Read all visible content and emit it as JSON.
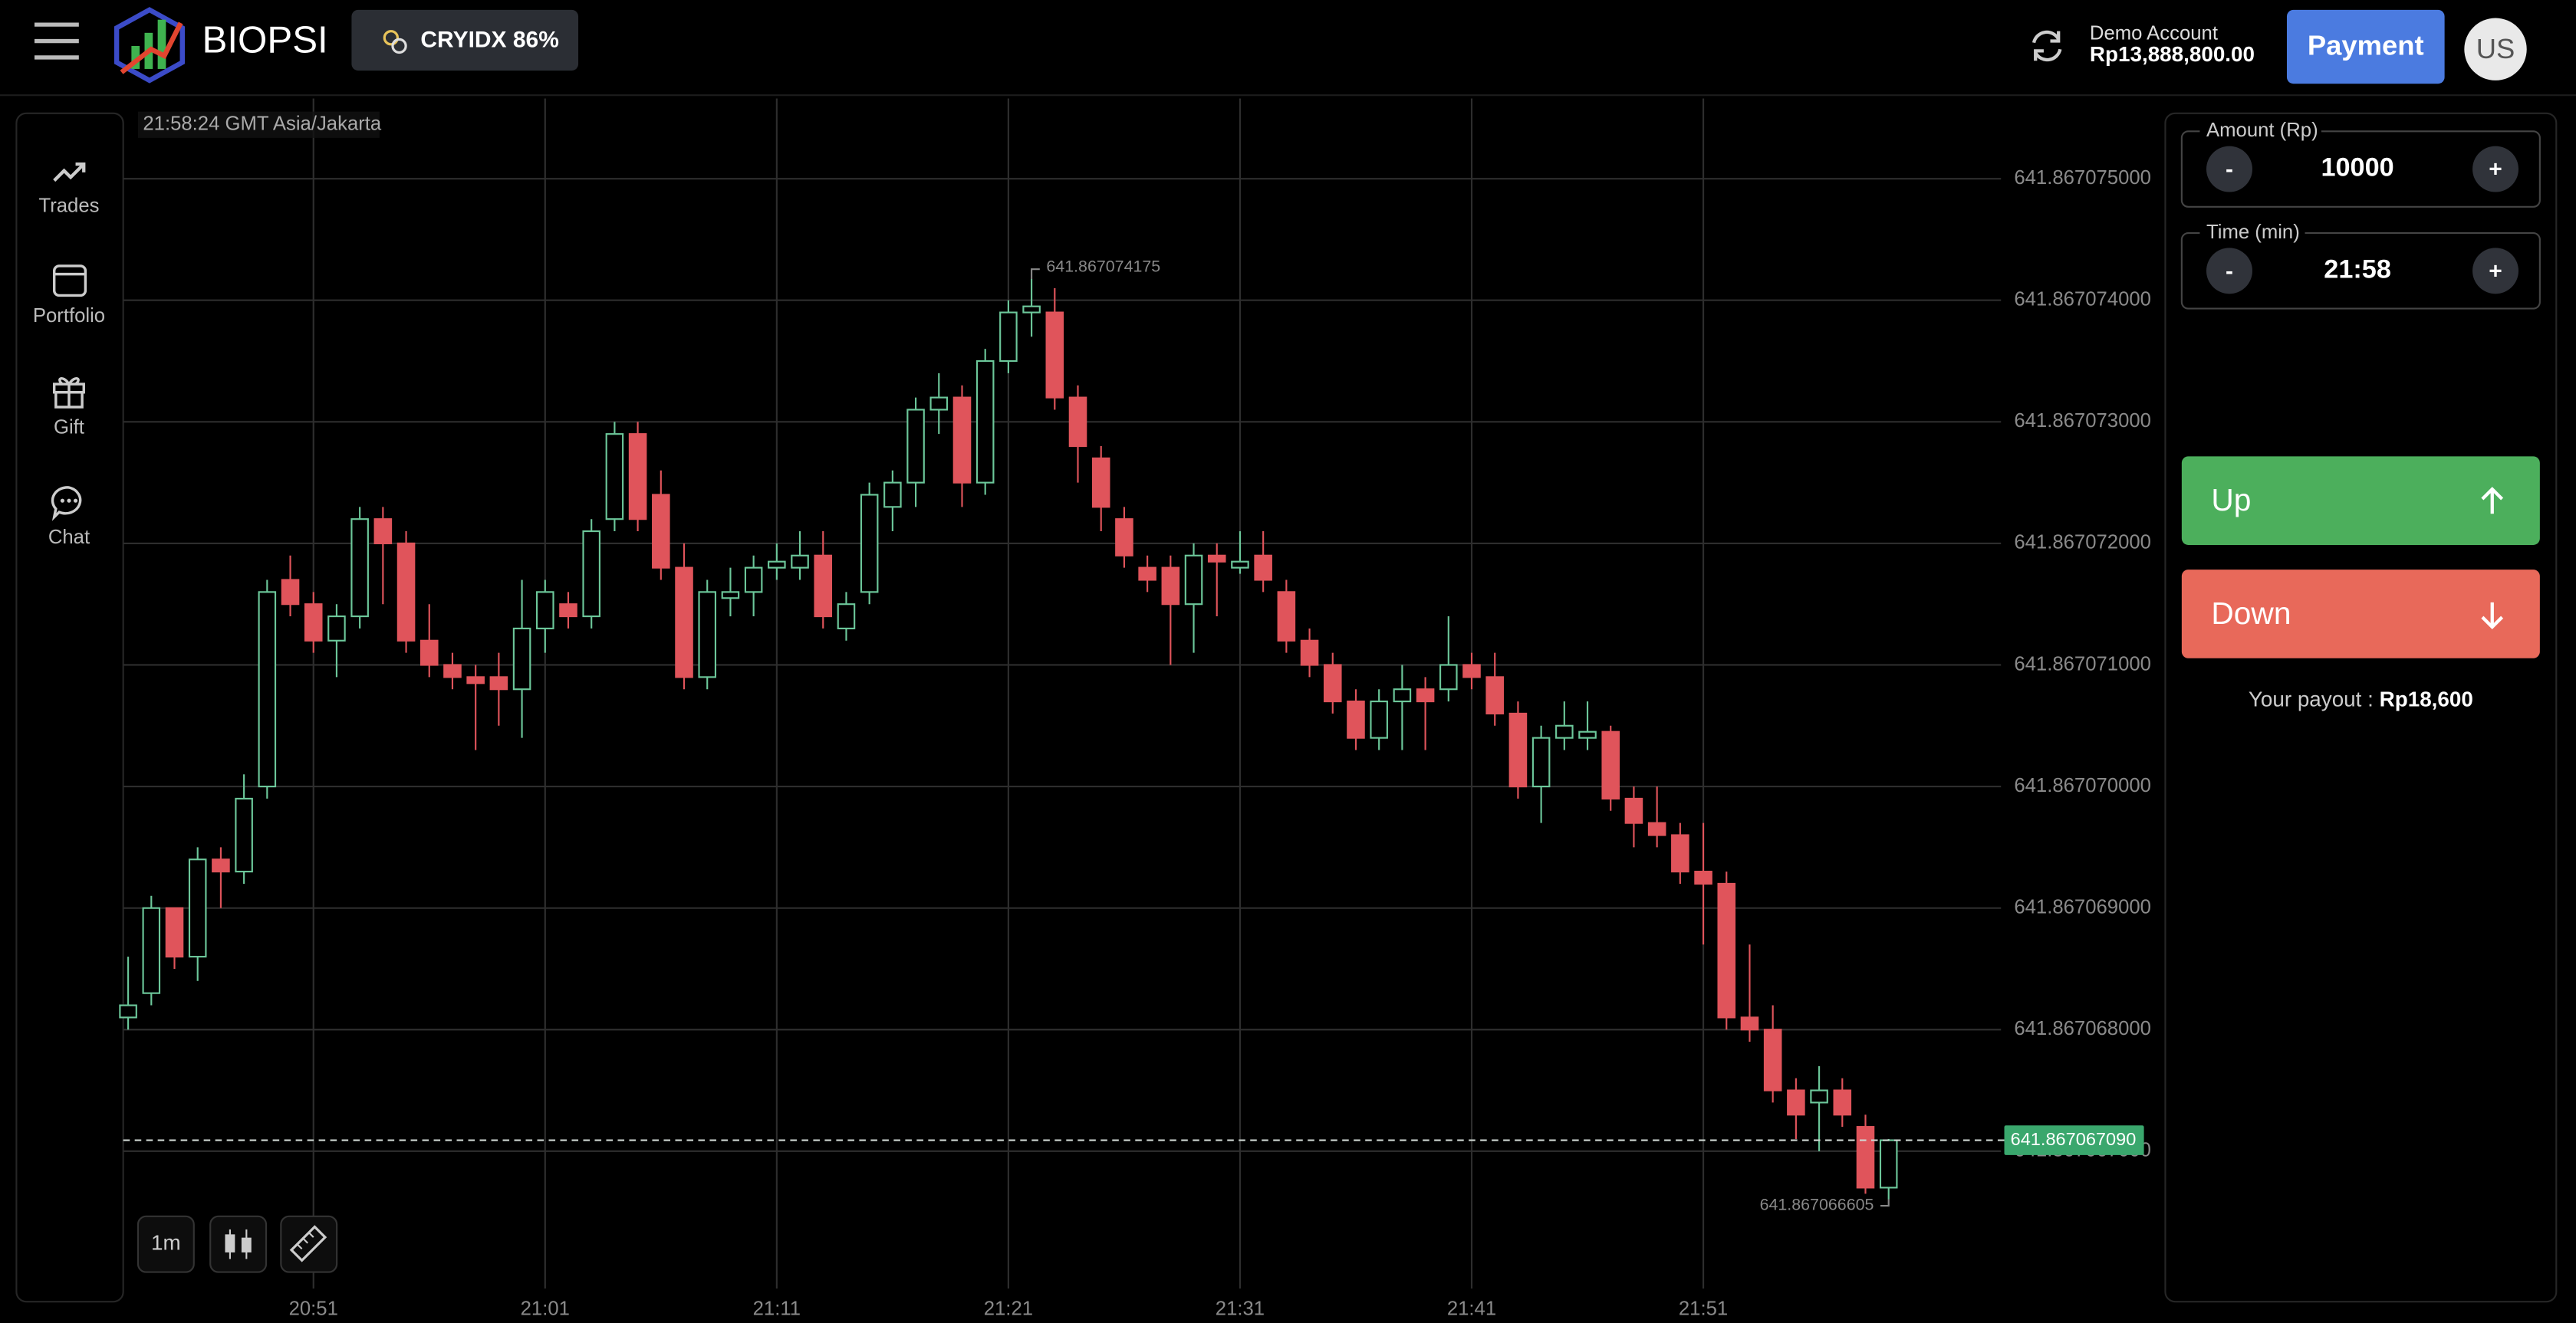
{
  "header": {
    "brand": "BIOPSI",
    "asset": "CRYIDX 86%",
    "account_type": "Demo Account",
    "balance": "Rp13,888,800.00",
    "payment": "Payment",
    "avatar": "US"
  },
  "sidebar": {
    "items": [
      "Trades",
      "Portfolio",
      "Gift",
      "Chat"
    ]
  },
  "trade_panel": {
    "amount_label": "Amount (Rp)",
    "amount": "10000",
    "minus": "-",
    "plus": "+",
    "time_label": "Time (min)",
    "time": "21:58",
    "up": "Up",
    "down": "Down",
    "payout_label": "Your payout :",
    "payout": "Rp18,600"
  },
  "chart_data": {
    "type": "candlestick",
    "timestamp": "21:58:24 GMT Asia/Jakarta",
    "timeframe": "1m",
    "up_color": "#6cc79a",
    "down_color": "#e0545b",
    "grid": true,
    "x": [
      "20:43",
      "20:44",
      "20:45",
      "20:46",
      "20:47",
      "20:48",
      "20:49",
      "20:50",
      "20:51",
      "20:52",
      "20:53",
      "20:54",
      "20:55",
      "20:56",
      "20:57",
      "20:58",
      "20:59",
      "21:00",
      "21:01",
      "21:02",
      "21:03",
      "21:04",
      "21:05",
      "21:06",
      "21:07",
      "21:08",
      "21:09",
      "21:10",
      "21:11",
      "21:12",
      "21:13",
      "21:14",
      "21:15",
      "21:16",
      "21:17",
      "21:18",
      "21:19",
      "21:20",
      "21:21",
      "21:22",
      "21:23",
      "21:24",
      "21:25",
      "21:26",
      "21:27",
      "21:28",
      "21:29",
      "21:30",
      "21:31",
      "21:32",
      "21:33",
      "21:34",
      "21:35",
      "21:36",
      "21:37",
      "21:38",
      "21:39",
      "21:40",
      "21:41",
      "21:42",
      "21:43",
      "21:44",
      "21:45",
      "21:46",
      "21:47",
      "21:48",
      "21:49",
      "21:50",
      "21:51",
      "21:52",
      "21:53",
      "21:54",
      "21:55",
      "21:56",
      "21:57",
      "21:58",
      "21:59"
    ],
    "open": [
      641.8670681,
      641.8670683,
      641.867069,
      641.8670686,
      641.8670694,
      641.8670693,
      641.86707,
      641.8670717,
      641.8670715,
      641.8670712,
      641.8670714,
      641.8670722,
      641.867072,
      641.8670712,
      641.867071,
      641.8670709,
      641.8670709,
      641.8670708,
      641.8670713,
      641.8670715,
      641.8670714,
      641.8670722,
      641.8670729,
      641.8670724,
      641.8670718,
      641.8670709,
      641.86707155,
      641.8670716,
      641.8670718,
      641.8670718,
      641.8670719,
      641.8670713,
      641.8670716,
      641.8670723,
      641.8670725,
      641.8670731,
      641.8670732,
      641.8670725,
      641.8670735,
      641.8670739,
      641.8670739,
      641.8670732,
      641.8670727,
      641.8670722,
      641.8670718,
      641.8670718,
      641.8670715,
      641.8670719,
      641.8670718,
      641.8670719,
      641.8670716,
      641.8670712,
      641.867071,
      641.8670707,
      641.8670704,
      641.8670707,
      641.8670708,
      641.8670708,
      641.867071,
      641.8670709,
      641.8670706,
      641.86707,
      641.8670704,
      641.8670704,
      641.86707045,
      641.8670699,
      641.8670697,
      641.8670696,
      641.8670693,
      641.8670692,
      641.8670681,
      641.867068,
      641.8670675,
      641.8670674,
      641.8670675,
      641.8670672,
      641.8670667
    ],
    "high": [
      641.8670686,
      641.8670691,
      641.867069,
      641.8670695,
      641.8670695,
      641.8670701,
      641.8670717,
      641.8670719,
      641.8670716,
      641.8670715,
      641.8670723,
      641.8670723,
      641.8670721,
      641.8670715,
      641.8670711,
      641.867071,
      641.8670711,
      641.8670717,
      641.8670717,
      641.8670716,
      641.8670722,
      641.867073,
      641.867073,
      641.8670726,
      641.867072,
      641.8670717,
      641.8670718,
      641.8670719,
      641.867072,
      641.8670721,
      641.8670721,
      641.8670716,
      641.8670725,
      641.8670726,
      641.8670732,
      641.8670734,
      641.8670733,
      641.8670736,
      641.867074,
      641.867074175,
      641.8670741,
      641.8670733,
      641.8670728,
      641.8670723,
      641.8670719,
      641.8670719,
      641.867072,
      641.867072,
      641.8670721,
      641.8670721,
      641.8670717,
      641.8670713,
      641.8670711,
      641.8670708,
      641.8670708,
      641.867071,
      641.8670709,
      641.8670714,
      641.8670711,
      641.8670711,
      641.8670707,
      641.8670705,
      641.8670707,
      641.8670707,
      641.8670705,
      641.86707,
      641.86707,
      641.8670697,
      641.8670697,
      641.8670693,
      641.8670687,
      641.8670682,
      641.8670676,
      641.8670677,
      641.8670676,
      641.8670673,
      641.8670671
    ],
    "low": [
      641.867068,
      641.8670682,
      641.8670685,
      641.8670684,
      641.867069,
      641.8670692,
      641.8670699,
      641.8670714,
      641.8670711,
      641.8670709,
      641.8670713,
      641.8670715,
      641.8670711,
      641.8670709,
      641.8670708,
      641.8670703,
      641.8670705,
      641.8670704,
      641.8670711,
      641.8670713,
      641.8670713,
      641.8670721,
      641.8670721,
      641.8670717,
      641.8670708,
      641.8670708,
      641.8670714,
      641.8670714,
      641.8670717,
      641.8670717,
      641.8670713,
      641.8670712,
      641.8670715,
      641.8670721,
      641.8670723,
      641.8670729,
      641.8670723,
      641.8670724,
      641.8670734,
      641.8670737,
      641.8670731,
      641.8670725,
      641.8670721,
      641.8670718,
      641.8670716,
      641.867071,
      641.8670711,
      641.8670714,
      641.86707175,
      641.8670716,
      641.8670711,
      641.8670709,
      641.8670706,
      641.8670703,
      641.8670703,
      641.8670703,
      641.8670703,
      641.8670707,
      641.8670708,
      641.8670705,
      641.8670699,
      641.8670697,
      641.8670703,
      641.8670703,
      641.8670698,
      641.8670695,
      641.8670695,
      641.8670692,
      641.8670687,
      641.867068,
      641.8670679,
      641.8670674,
      641.8670671,
      641.867067,
      641.8670672,
      641.86706665,
      641.867066605
    ],
    "close": [
      641.8670682,
      641.867069,
      641.8670686,
      641.8670694,
      641.8670693,
      641.8670699,
      641.8670716,
      641.8670715,
      641.8670712,
      641.8670714,
      641.8670722,
      641.867072,
      641.8670712,
      641.867071,
      641.8670709,
      641.86707085,
      641.8670708,
      641.8670713,
      641.8670716,
      641.8670714,
      641.8670721,
      641.8670729,
      641.8670722,
      641.8670718,
      641.8670709,
      641.8670716,
      641.8670716,
      641.8670718,
      641.86707185,
      641.8670719,
      641.8670714,
      641.8670715,
      641.8670724,
      641.8670725,
      641.8670731,
      641.8670732,
      641.8670725,
      641.8670735,
      641.8670739,
      641.86707395,
      641.8670732,
      641.8670728,
      641.8670723,
      641.8670719,
      641.8670717,
      641.8670715,
      641.8670719,
      641.86707185,
      641.86707185,
      641.8670717,
      641.8670712,
      641.867071,
      641.8670707,
      641.8670704,
      641.8670707,
      641.8670708,
      641.8670707,
      641.867071,
      641.8670709,
      641.8670706,
      641.86707,
      641.8670704,
      641.8670705,
      641.86707045,
      641.8670699,
      641.8670697,
      641.8670696,
      641.8670693,
      641.8670692,
      641.8670681,
      641.867068,
      641.8670675,
      641.8670673,
      641.8670675,
      641.8670673,
      641.8670667,
      641.86706709
    ],
    "ylim": [
      641.86706587,
      641.86707566
    ],
    "yticks": [
      {
        "value": 641.867075,
        "label": "641.867075000"
      },
      {
        "value": 641.867074,
        "label": "641.867074000"
      },
      {
        "value": 641.867073,
        "label": "641.867073000"
      },
      {
        "value": 641.867072,
        "label": "641.867072000"
      },
      {
        "value": 641.867071,
        "label": "641.867071000"
      },
      {
        "value": 641.86707,
        "label": "641.867070000"
      },
      {
        "value": 641.867069,
        "label": "641.867069000"
      },
      {
        "value": 641.867068,
        "label": "641.867068000"
      },
      {
        "value": 641.867067,
        "label": "641.867067000"
      }
    ],
    "xticks": [
      "20:51",
      "21:01",
      "21:11",
      "21:21",
      "21:31",
      "21:41",
      "21:51"
    ],
    "max_label": "641.867074175",
    "min_label": "641.867066605",
    "last_price_label": "641.867067090"
  }
}
